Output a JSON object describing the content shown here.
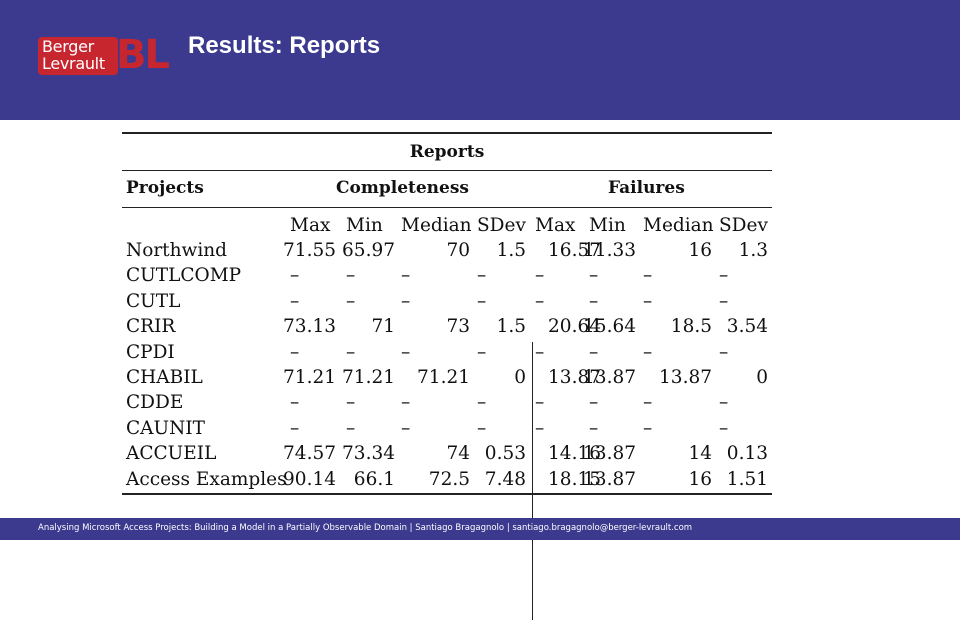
{
  "header": {
    "logo_line1": "Berger",
    "logo_line2": "Levrault",
    "logo_mark": "BL",
    "title": "Results: Reports",
    "background": "#3b3a8f",
    "logo_color": "#c8262f"
  },
  "table": {
    "caption": "Reports",
    "group_projects": "Projects",
    "group_completeness": "Completeness",
    "group_failures": "Failures",
    "columns": [
      "Max",
      "Min",
      "Median",
      "SDev",
      "Max",
      "Min",
      "Median",
      "SDev"
    ],
    "rows": [
      {
        "name": "Northwind",
        "values": [
          "71.55",
          "65.97",
          "70",
          "1.5",
          "16.57",
          "11.33",
          "16",
          "1.3"
        ]
      },
      {
        "name": "CUTLCOMP",
        "values": [
          "–",
          "–",
          "–",
          "–",
          "–",
          "–",
          "–",
          "–"
        ]
      },
      {
        "name": "CUTL",
        "values": [
          "–",
          "–",
          "–",
          "–",
          "–",
          "–",
          "–",
          "–"
        ]
      },
      {
        "name": "CRIR",
        "values": [
          "73.13",
          "71",
          "73",
          "1.5",
          "20.64",
          "15.64",
          "18.5",
          "3.54"
        ]
      },
      {
        "name": "CPDI",
        "values": [
          "–",
          "–",
          "–",
          "–",
          "–",
          "–",
          "–",
          "–"
        ]
      },
      {
        "name": "CHABIL",
        "values": [
          "71.21",
          "71.21",
          "71.21",
          "0",
          "13.87",
          "13.87",
          "13.87",
          "0"
        ]
      },
      {
        "name": "CDDE",
        "values": [
          "–",
          "–",
          "–",
          "–",
          "–",
          "–",
          "–",
          "–"
        ]
      },
      {
        "name": "CAUNIT",
        "values": [
          "–",
          "–",
          "–",
          "–",
          "–",
          "–",
          "–",
          "–"
        ]
      },
      {
        "name": "ACCUEIL",
        "values": [
          "74.57",
          "73.34",
          "74",
          "0.53",
          "14.16",
          "13.87",
          "14",
          "0.13"
        ]
      },
      {
        "name": "Access Examples",
        "values": [
          "90.14",
          "66.1",
          "72.5",
          "7.48",
          "18.15",
          "13.87",
          "16",
          "1.51"
        ]
      }
    ]
  },
  "footer": {
    "text": "Analysing Microsoft Access Projects: Building a Model in a Partially Observable Domain | Santiago Bragagnolo | santiago.bragagnolo@berger-levrault.com"
  }
}
